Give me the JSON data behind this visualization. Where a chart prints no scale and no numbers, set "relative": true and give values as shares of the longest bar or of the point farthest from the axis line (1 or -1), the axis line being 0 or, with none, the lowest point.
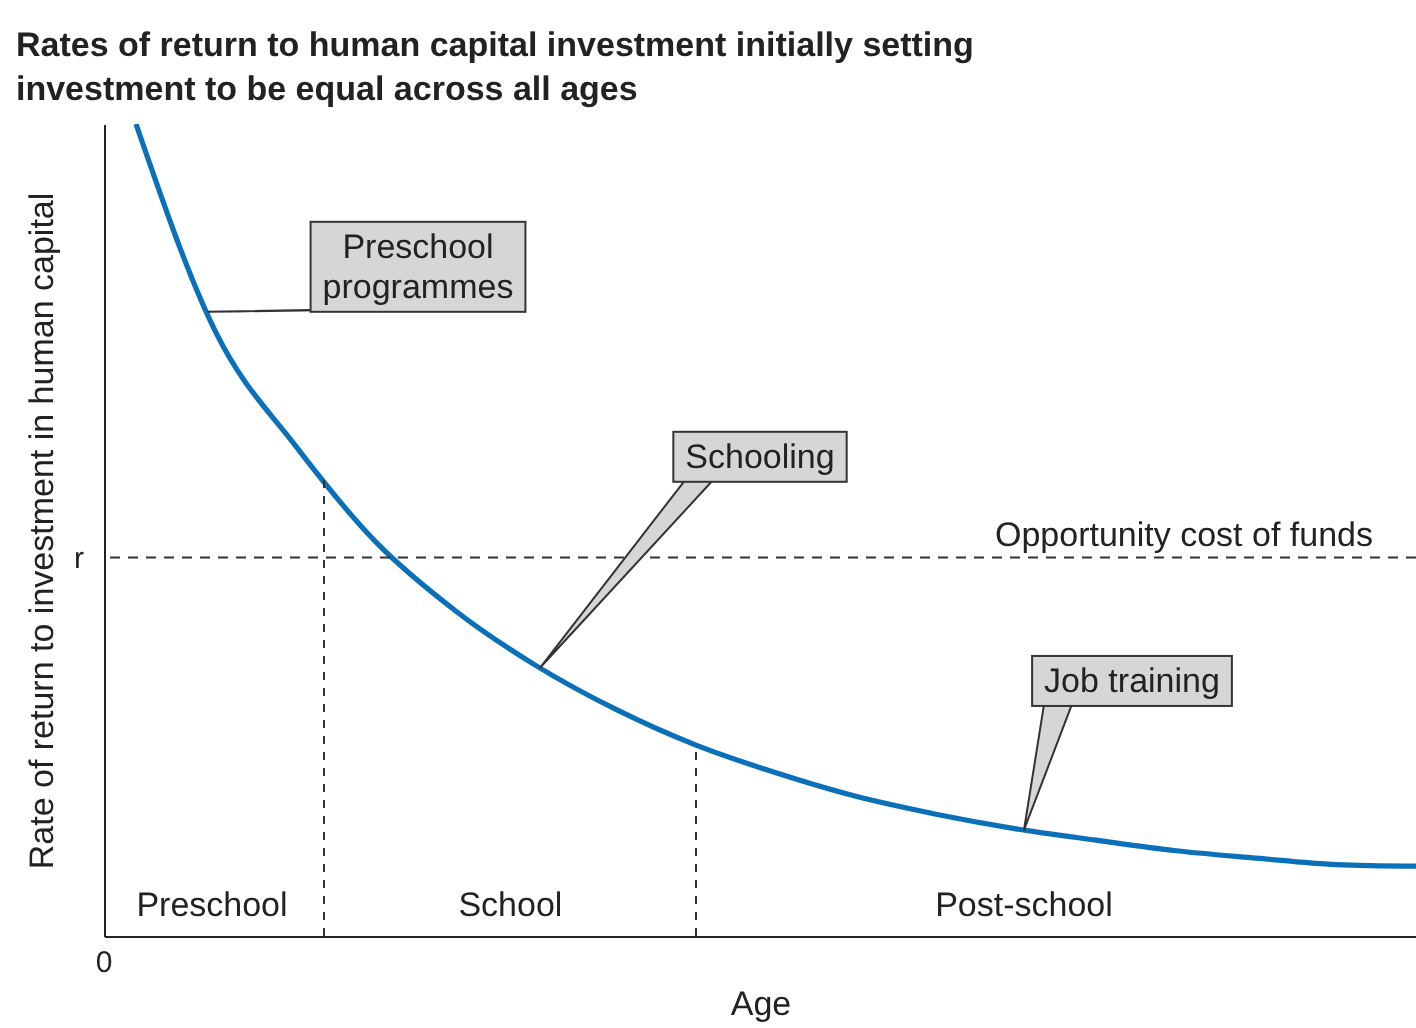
{
  "chart_data": {
    "type": "line",
    "relative": true,
    "title": "Rates of return to human capital investment initially setting investment to be equal across all ages",
    "xlabel": "Age",
    "ylabel": "Rate of return to investment in human capital",
    "categories": [
      null,
      null,
      null,
      null,
      null,
      null,
      null,
      null,
      null,
      null,
      null,
      null,
      null,
      null,
      null,
      null,
      null
    ],
    "values": [
      1.0,
      0.743,
      0.603,
      0.485,
      0.4,
      0.333,
      0.279,
      0.235,
      0.201,
      0.172,
      0.15,
      0.132,
      0.118,
      0.105,
      0.096,
      0.088,
      0.086
    ],
    "color": "#0a70b9",
    "ref_lines": [
      {
        "axis": "y",
        "value": 0.466,
        "label": "r",
        "line_style": "dashed"
      }
    ],
    "annotations": [
      "Preschool programmes",
      "Schooling",
      "Job training",
      "Opportunity cost of funds",
      "Preschool",
      "School",
      "Post-school",
      "0"
    ]
  }
}
